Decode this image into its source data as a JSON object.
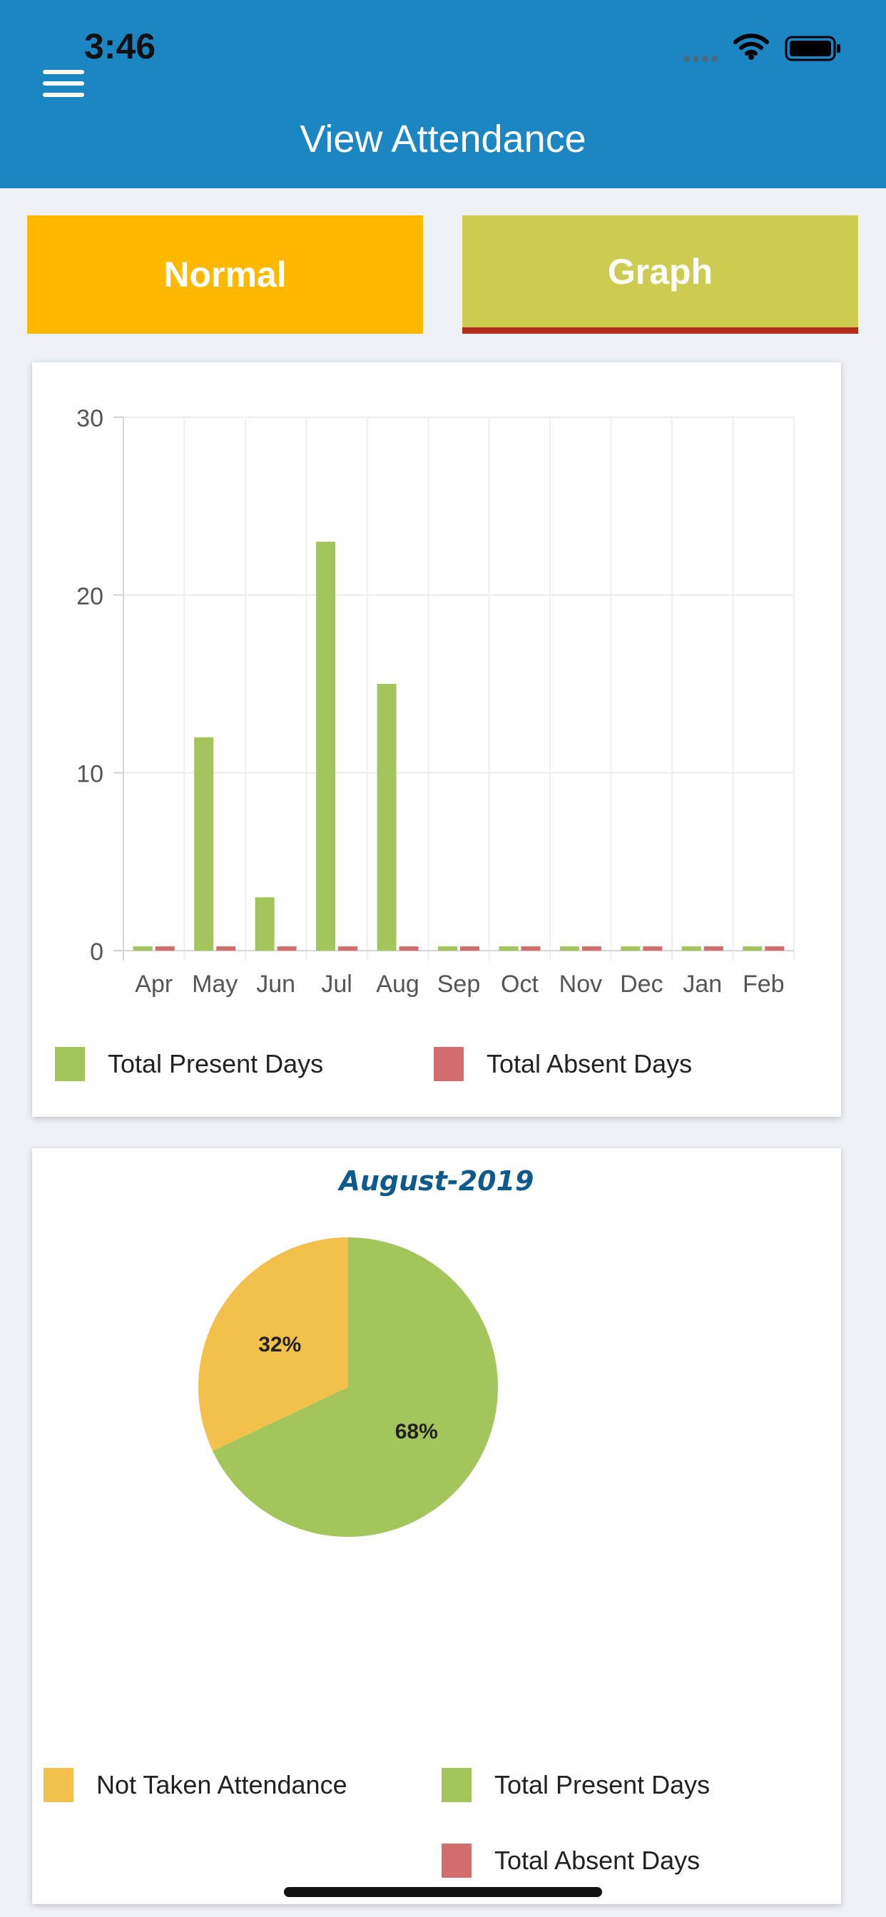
{
  "status_bar": {
    "time": "3:46"
  },
  "header": {
    "title": "View Attendance",
    "menu_icon": "hamburger-menu-icon"
  },
  "tabs": [
    {
      "label": "Normal",
      "color": "#ffb800",
      "active": false
    },
    {
      "label": "Graph",
      "color": "#cccc50",
      "active": true,
      "indicator_color": "#b22d1e"
    }
  ],
  "colors": {
    "present": "#a3c55c",
    "absent": "#d46e6e",
    "not_taken": "#f3c14b",
    "header": "#1b86c2"
  },
  "chart_data": [
    {
      "type": "bar",
      "title": "",
      "categories": [
        "Apr",
        "May",
        "Jun",
        "Jul",
        "Aug",
        "Sep",
        "Oct",
        "Nov",
        "Dec",
        "Jan",
        "Feb"
      ],
      "series": [
        {
          "name": "Total Present Days",
          "values": [
            0,
            12,
            3,
            23,
            15,
            0,
            0,
            0,
            0,
            0,
            0
          ]
        },
        {
          "name": "Total Absent Days",
          "values": [
            0,
            0,
            0,
            0,
            0,
            0,
            0,
            0,
            0,
            0,
            0
          ]
        }
      ],
      "ylim": [
        0,
        30
      ],
      "yticks": [
        0,
        10,
        20,
        30
      ],
      "grid": true,
      "legend_position": "bottom"
    },
    {
      "type": "pie",
      "title": "August-2019",
      "slices": [
        {
          "name": "Total Present Days",
          "value": 68,
          "label": "68%"
        },
        {
          "name": "Not Taken Attendance",
          "value": 32,
          "label": "32%"
        }
      ],
      "legend": [
        "Not Taken Attendance",
        "Total Present Days",
        "Total Absent Days"
      ],
      "legend_position": "bottom"
    }
  ]
}
